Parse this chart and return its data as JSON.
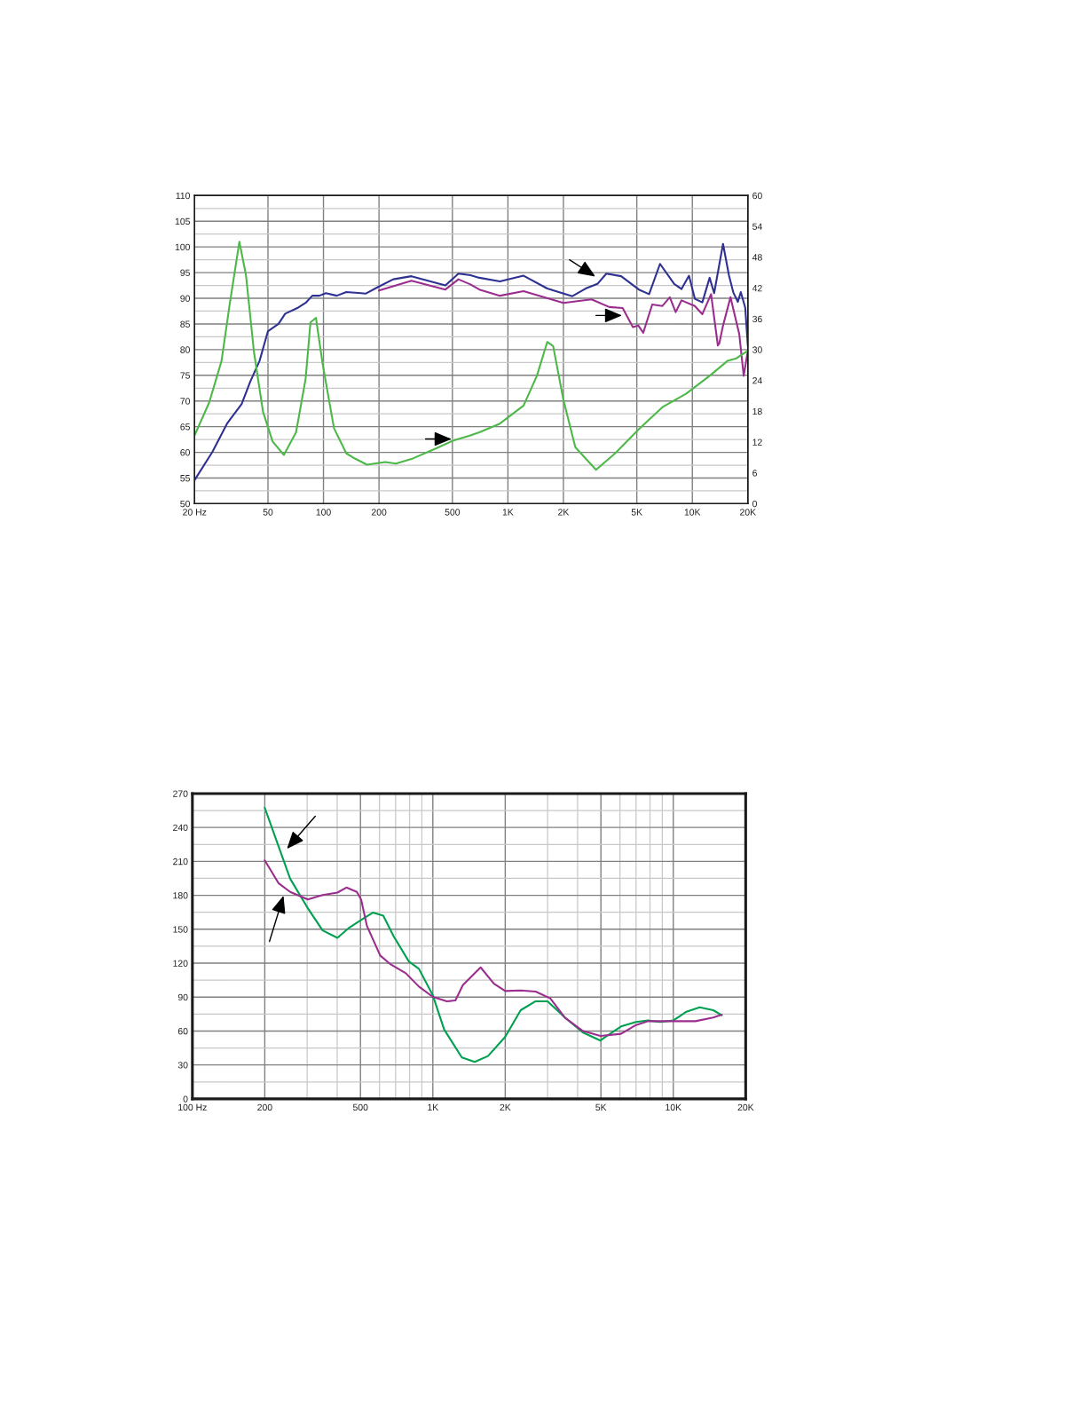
{
  "chart_data": [
    {
      "type": "line",
      "xlim": [
        20,
        20000
      ],
      "ylim": [
        50,
        110
      ],
      "y2lim": [
        0,
        60
      ],
      "log": "x",
      "grid": true,
      "line_style": "solid",
      "xticks": [
        {
          "value": 20,
          "label": "20 Hz"
        },
        50,
        100,
        200,
        500,
        {
          "value": 1000,
          "label": "1K"
        },
        {
          "value": 2000,
          "label": "2K"
        },
        {
          "value": 5000,
          "label": "5K"
        },
        {
          "value": 10000,
          "label": "10K"
        },
        {
          "value": 20000,
          "label": "20K"
        }
      ],
      "yticks": [
        50,
        55,
        60,
        65,
        70,
        75,
        80,
        85,
        90,
        95,
        100,
        105,
        110
      ],
      "y2ticks": [
        0,
        6,
        12,
        18,
        24,
        30,
        36,
        42,
        48,
        54,
        60
      ],
      "series": [
        {
          "color": "#2e3192",
          "x": [
            20,
            25,
            30,
            36,
            40,
            45,
            50,
            57,
            62,
            73,
            80,
            87,
            95,
            103,
            118,
            133,
            160,
            169,
            200,
            239,
            300,
            361,
            458,
            539,
            626,
            700,
            905,
            1216,
            1634,
            2235,
            2638,
            3058,
            3417,
            4110,
            5128,
            5829,
            6680,
            7975,
            8740,
            9590,
            10320,
            11330,
            12410,
            13130,
            14670,
            15790,
            16690,
            17650,
            18310,
            19350,
            20000
          ],
          "values": [
            54.6,
            60.1,
            65.6,
            69.4,
            73.7,
            77.8,
            83.6,
            85.0,
            87.0,
            88.2,
            89.1,
            90.5,
            90.5,
            91.0,
            90.5,
            91.2,
            91.0,
            90.9,
            92.3,
            93.7,
            94.3,
            93.5,
            92.5,
            94.8,
            94.5,
            94.0,
            93.3,
            94.4,
            91.9,
            90.4,
            91.9,
            92.8,
            94.8,
            94.3,
            91.7,
            90.8,
            96.7,
            92.8,
            91.8,
            94.4,
            89.9,
            89.2,
            94.0,
            91.0,
            100.6,
            94.5,
            91.1,
            89.3,
            91.2,
            88.2,
            80.7
          ]
        },
        {
          "color": "#9b2d8e",
          "x": [
            200,
            300,
            458,
            539,
            626,
            700,
            905,
            1216,
            2000,
            2840,
            3545,
            4190,
            4760,
            5090,
            5420,
            6060,
            6880,
            7550,
            8120,
            8740,
            10320,
            11330,
            12640,
            13750,
            14000,
            14670,
            16100,
            17970,
            18990,
            20000
          ],
          "values": [
            91.5,
            93.4,
            91.7,
            93.7,
            92.7,
            91.7,
            90.5,
            91.4,
            89.1,
            89.8,
            88.3,
            88.1,
            84.4,
            84.7,
            83.3,
            88.8,
            88.5,
            90.2,
            87.3,
            89.6,
            88.5,
            86.9,
            90.8,
            80.8,
            81.2,
            84.7,
            90.2,
            83.0,
            74.9,
            79.8
          ]
        },
        {
          "color": "#4cb848",
          "axis": "y2",
          "x": [
            20,
            24,
            28,
            31,
            35,
            38,
            42,
            47,
            53,
            61,
            71,
            80,
            85,
            91,
            99,
            114,
            133,
            148,
            172,
            216,
            247,
            300,
            404,
            506,
            626,
            700,
            905,
            1216,
            1436,
            1634,
            1759,
            2000,
            2320,
            3004,
            3812,
            5128,
            6880,
            9240,
            12410,
            15500,
            17320,
            20000
          ],
          "values": [
            13.3,
            19.7,
            27.8,
            38.8,
            51.0,
            44.5,
            29.5,
            17.9,
            12.1,
            9.5,
            13.9,
            24.3,
            35.3,
            36.2,
            27.2,
            14.7,
            9.8,
            8.8,
            7.6,
            8.1,
            7.8,
            8.7,
            10.7,
            12.3,
            13.3,
            13.9,
            15.6,
            19.1,
            24.9,
            31.5,
            30.7,
            20.2,
            11.0,
            6.6,
            9.8,
            14.5,
            18.8,
            21.4,
            24.9,
            27.8,
            28.3,
            29.8
          ]
        }
      ]
    },
    {
      "type": "line",
      "xlim": [
        100,
        20000
      ],
      "ylim": [
        0,
        270
      ],
      "log": "x",
      "grid": true,
      "line_style": "solid",
      "xticks": [
        {
          "value": 100,
          "label": "100 Hz"
        },
        200,
        500,
        {
          "value": 1000,
          "label": "1K"
        },
        {
          "value": 2000,
          "label": "2K"
        },
        {
          "value": 5000,
          "label": "5K"
        },
        {
          "value": 10000,
          "label": "10K"
        },
        {
          "value": 20000,
          "label": "20K"
        }
      ],
      "yticks": [
        0,
        30,
        60,
        90,
        120,
        150,
        180,
        210,
        240,
        270
      ],
      "series": [
        {
          "color": "#00a050",
          "x": [
            200,
            228,
            255,
            302,
            348,
            401,
            450,
            503,
            563,
            622,
            687,
            795,
            875,
            1000,
            1114,
            1320,
            1494,
            1696,
            2000,
            2319,
            2675,
            3000,
            3542,
            4200,
            4979,
            5120,
            6060,
            7000,
            7850,
            8800,
            10000,
            11340,
            12870,
            14660,
            15900
          ],
          "values": [
            257.4,
            223.5,
            194.7,
            168.6,
            149,
            142.4,
            151.6,
            158.1,
            164.7,
            162,
            143.8,
            121.5,
            115,
            91.5,
            61.4,
            36.6,
            32.7,
            37.9,
            54.9,
            78.4,
            86.3,
            86.3,
            71.9,
            58.8,
            51.5,
            53.6,
            64.0,
            68.0,
            69.3,
            68.0,
            69.3,
            77.1,
            81.0,
            78.4,
            74.0
          ]
        },
        {
          "color": "#9b2d8e",
          "x": [
            200,
            228,
            255,
            302,
            348,
            401,
            437,
            483,
            503,
            532,
            604,
            668,
            772,
            875,
            1000,
            1144,
            1241,
            1333,
            1580,
            1795,
            2000,
            2319,
            2675,
            3078,
            3542,
            4200,
            4979,
            6060,
            7000,
            7850,
            10000,
            12360,
            14660,
            15900
          ],
          "values": [
            210.9,
            190.8,
            183,
            176.4,
            180.3,
            182.4,
            186.9,
            183,
            176.4,
            152.9,
            126.8,
            118.9,
            111.1,
            99.3,
            90.2,
            86.3,
            87,
            100.6,
            116.3,
            101.9,
            95.4,
            95.9,
            94.9,
            88.9,
            71.9,
            60.1,
            55.7,
            57.5,
            65.3,
            68.7,
            68.7,
            68.7,
            71.9,
            74.5
          ]
        }
      ]
    }
  ]
}
